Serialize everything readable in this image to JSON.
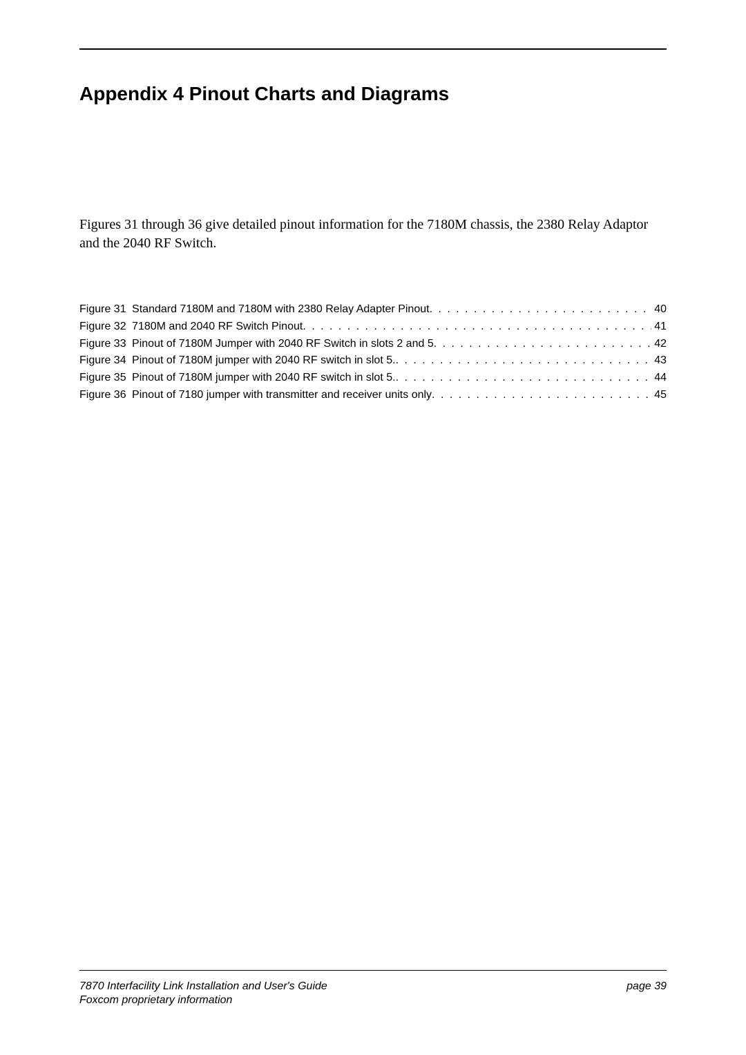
{
  "heading": "Appendix 4   Pinout Charts and Diagrams",
  "intro": "Figures 31 through 36 give detailed pinout information for the 7180M chassis, the 2380 Relay Adaptor and the 2040 RF Switch.",
  "figures": [
    {
      "label": "Figure 31",
      "title": "Standard 7180M and 7180M with 2380 Relay Adapter Pinout",
      "page": "40"
    },
    {
      "label": "Figure 32",
      "title": "7180M and 2040 RF Switch Pinout",
      "page": "41"
    },
    {
      "label": "Figure 33",
      "title": "Pinout of 7180M Jumper with 2040 RF Switch in slots 2 and 5",
      "page": "42"
    },
    {
      "label": "Figure 34",
      "title": "Pinout of 7180M jumper with 2040 RF switch in slot 5.",
      "page": "43"
    },
    {
      "label": "Figure 35",
      "title": "Pinout of 7180M jumper with 2040 RF switch in slot 5.",
      "page": "44"
    },
    {
      "label": "Figure 36",
      "title": "Pinout of 7180 jumper with transmitter and receiver units only",
      "page": "45"
    }
  ],
  "footer": {
    "title": "7870 Interfacility Link Installation and User's Guide",
    "page": "page 39",
    "sub": "Foxcom proprietary information"
  }
}
